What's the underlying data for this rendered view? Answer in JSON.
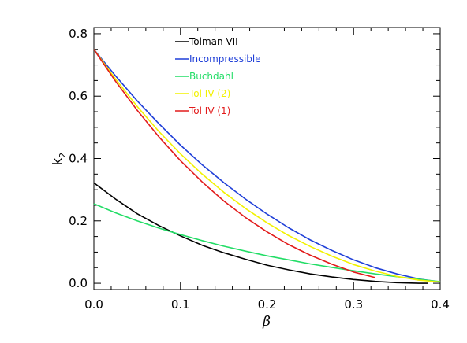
{
  "chart_data": {
    "type": "line",
    "title": "",
    "xlabel": "β",
    "ylabel_main": "k",
    "ylabel_sub": "2",
    "xlim": [
      0.0,
      0.4
    ],
    "ylim": [
      -0.02,
      0.82
    ],
    "xticks": [
      0.0,
      0.1,
      0.2,
      0.3,
      0.4
    ],
    "xtick_labels": [
      "0.0",
      "0.1",
      "0.2",
      "0.3",
      "0.4"
    ],
    "yticks": [
      0.0,
      0.2,
      0.4,
      0.6,
      0.8
    ],
    "ytick_labels": [
      "0.0",
      "0.2",
      "0.4",
      "0.6",
      "0.8"
    ],
    "grid": false,
    "legend_position": "top-center",
    "series": [
      {
        "name": "Tolman VII",
        "color": "#000000",
        "x": [
          0.0,
          0.025,
          0.05,
          0.075,
          0.1,
          0.125,
          0.15,
          0.175,
          0.2,
          0.225,
          0.25,
          0.275,
          0.3,
          0.325,
          0.35,
          0.375,
          0.386
        ],
        "y": [
          0.322,
          0.27,
          0.223,
          0.185,
          0.152,
          0.122,
          0.098,
          0.077,
          0.058,
          0.043,
          0.03,
          0.02,
          0.012,
          0.006,
          0.002,
          0.0,
          0.0
        ]
      },
      {
        "name": "Incompressible",
        "color": "#1f3fd8",
        "x": [
          0.0,
          0.025,
          0.05,
          0.075,
          0.1,
          0.125,
          0.15,
          0.175,
          0.2,
          0.225,
          0.25,
          0.275,
          0.3,
          0.325,
          0.35,
          0.375,
          0.4
        ],
        "y": [
          0.75,
          0.665,
          0.585,
          0.512,
          0.443,
          0.38,
          0.323,
          0.27,
          0.222,
          0.178,
          0.139,
          0.105,
          0.075,
          0.05,
          0.03,
          0.014,
          0.004
        ]
      },
      {
        "name": "Buchdahl",
        "color": "#22dd66",
        "x": [
          0.0,
          0.025,
          0.05,
          0.075,
          0.1,
          0.125,
          0.15,
          0.175,
          0.2,
          0.225,
          0.25,
          0.275,
          0.3,
          0.325,
          0.35,
          0.375,
          0.4
        ],
        "y": [
          0.255,
          0.226,
          0.2,
          0.177,
          0.156,
          0.137,
          0.119,
          0.103,
          0.088,
          0.075,
          0.062,
          0.051,
          0.04,
          0.03,
          0.021,
          0.013,
          0.005
        ]
      },
      {
        "name": "Tol IV (2)",
        "color": "#f2f200",
        "x": [
          0.0,
          0.025,
          0.05,
          0.075,
          0.1,
          0.125,
          0.15,
          0.175,
          0.2,
          0.225,
          0.25,
          0.275,
          0.3,
          0.325,
          0.35,
          0.375,
          0.4
        ],
        "y": [
          0.75,
          0.655,
          0.567,
          0.487,
          0.415,
          0.35,
          0.292,
          0.24,
          0.194,
          0.153,
          0.118,
          0.087,
          0.06,
          0.039,
          0.022,
          0.01,
          0.004
        ]
      },
      {
        "name": "Tol IV (1)",
        "color": "#e21b1b",
        "x": [
          0.0,
          0.025,
          0.05,
          0.075,
          0.1,
          0.125,
          0.15,
          0.175,
          0.2,
          0.225,
          0.25,
          0.275,
          0.3,
          0.325
        ],
        "y": [
          0.75,
          0.648,
          0.555,
          0.47,
          0.393,
          0.325,
          0.264,
          0.211,
          0.165,
          0.124,
          0.09,
          0.061,
          0.036,
          0.018
        ]
      }
    ]
  }
}
